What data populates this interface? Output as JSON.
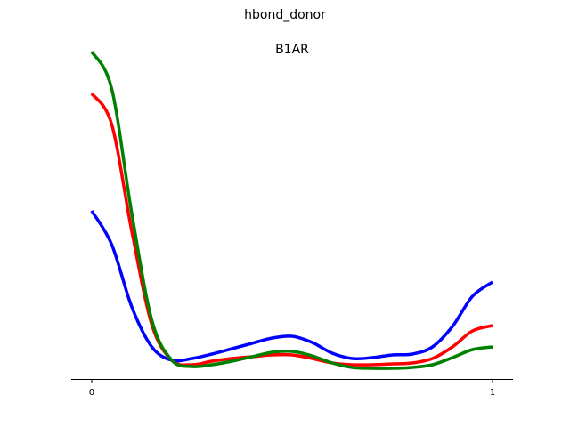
{
  "chart_data": {
    "type": "line",
    "title": "hbond_donor",
    "subtitle": "B1AR",
    "x": [
      0,
      0.05,
      0.1,
      0.15,
      0.2,
      0.25,
      0.3,
      0.35,
      0.4,
      0.45,
      0.5,
      0.55,
      0.6,
      0.65,
      0.7,
      0.75,
      0.8,
      0.85,
      0.9,
      0.95,
      1
    ],
    "series": [
      {
        "color": "#0000ff",
        "values": [
          1.89,
          1.51,
          0.81,
          0.36,
          0.21,
          0.23,
          0.28,
          0.34,
          0.4,
          0.46,
          0.48,
          0.41,
          0.29,
          0.23,
          0.24,
          0.27,
          0.28,
          0.36,
          0.59,
          0.93,
          1.09
        ]
      },
      {
        "color": "#ff0000",
        "values": [
          3.21,
          2.86,
          1.66,
          0.61,
          0.21,
          0.16,
          0.2,
          0.23,
          0.25,
          0.27,
          0.27,
          0.23,
          0.18,
          0.16,
          0.16,
          0.17,
          0.18,
          0.23,
          0.36,
          0.54,
          0.6
        ]
      },
      {
        "color": "#008000",
        "values": [
          3.68,
          3.26,
          1.86,
          0.66,
          0.21,
          0.14,
          0.16,
          0.2,
          0.25,
          0.3,
          0.31,
          0.26,
          0.18,
          0.13,
          0.12,
          0.12,
          0.13,
          0.16,
          0.24,
          0.33,
          0.36
        ]
      }
    ],
    "xlim": [
      -0.051,
      1.051
    ],
    "xticks": [
      0,
      1
    ],
    "ylim": [
      0,
      4
    ]
  }
}
